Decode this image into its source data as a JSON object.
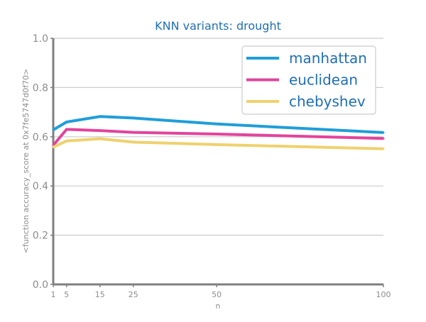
{
  "chart_data": {
    "type": "line",
    "title": "KNN variants: drought",
    "xlabel": "n",
    "ylabel": "<function accuracy_score at 0x7fe5747d0f70>",
    "xlim": [
      1,
      100
    ],
    "ylim": [
      0.0,
      1.0
    ],
    "x_ticks": [
      1,
      5,
      15,
      25,
      50,
      100
    ],
    "y_ticks": [
      "0.0",
      "0.2",
      "0.4",
      "0.6",
      "0.8",
      "1.0"
    ],
    "grid": "horizontal",
    "legend_position": "top-right",
    "x": [
      1,
      5,
      15,
      25,
      50,
      100
    ],
    "series": [
      {
        "name": "manhattan",
        "color": "#1f9ed9",
        "values": [
          0.628,
          0.66,
          0.682,
          0.676,
          0.652,
          0.617
        ]
      },
      {
        "name": "euclidean",
        "color": "#e2449c",
        "values": [
          0.565,
          0.63,
          0.625,
          0.618,
          0.611,
          0.593
        ]
      },
      {
        "name": "chebyshev",
        "color": "#efd16d",
        "values": [
          0.558,
          0.583,
          0.592,
          0.578,
          0.568,
          0.551
        ]
      }
    ],
    "colors": {
      "title": "#1f6fb4",
      "axis": "#7f7f7f",
      "tick_label": "#8c8c8c",
      "grid": "#cccccc",
      "legend_text": "#1f6fb4"
    }
  }
}
